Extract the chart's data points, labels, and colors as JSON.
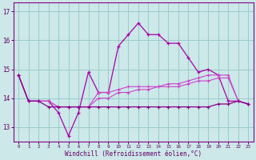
{
  "xlabel": "Windchill (Refroidissement éolien,°C)",
  "x": [
    0,
    1,
    2,
    3,
    4,
    5,
    6,
    7,
    8,
    9,
    10,
    11,
    12,
    13,
    14,
    15,
    16,
    17,
    18,
    19,
    20,
    21,
    22,
    23
  ],
  "line1": [
    14.8,
    13.9,
    13.9,
    13.9,
    13.5,
    12.7,
    13.5,
    14.9,
    14.2,
    14.2,
    15.8,
    16.2,
    16.6,
    16.2,
    16.2,
    15.9,
    15.9,
    15.4,
    14.9,
    15.0,
    14.8,
    13.9,
    13.9,
    13.8
  ],
  "line2": [
    14.8,
    13.9,
    13.9,
    13.9,
    13.7,
    13.7,
    13.7,
    13.7,
    14.2,
    14.2,
    14.3,
    14.4,
    14.4,
    14.4,
    14.4,
    14.5,
    14.5,
    14.6,
    14.7,
    14.8,
    14.8,
    14.8,
    13.9,
    13.8
  ],
  "line3": [
    14.8,
    13.9,
    13.9,
    13.9,
    13.7,
    13.7,
    13.7,
    13.7,
    14.0,
    14.0,
    14.2,
    14.2,
    14.3,
    14.3,
    14.4,
    14.4,
    14.4,
    14.5,
    14.6,
    14.6,
    14.7,
    14.7,
    13.9,
    13.8
  ],
  "line4": [
    14.8,
    13.9,
    13.9,
    13.7,
    13.7,
    13.7,
    13.7,
    13.7,
    13.7,
    13.7,
    13.7,
    13.7,
    13.7,
    13.7,
    13.7,
    13.7,
    13.7,
    13.7,
    13.7,
    13.7,
    13.8,
    13.8,
    13.9,
    13.8
  ],
  "color1": "#aa00aa",
  "color2": "#cc44cc",
  "color3": "#cc44cc",
  "color4": "#880088",
  "bg_color": "#cce8e8",
  "grid_color": "#99cccc",
  "ylim": [
    12.5,
    17.3
  ],
  "yticks": [
    13,
    14,
    15,
    16,
    17
  ],
  "xticks": [
    0,
    1,
    2,
    3,
    4,
    5,
    6,
    7,
    8,
    9,
    10,
    11,
    12,
    13,
    14,
    15,
    16,
    17,
    18,
    19,
    20,
    21,
    22,
    23
  ]
}
